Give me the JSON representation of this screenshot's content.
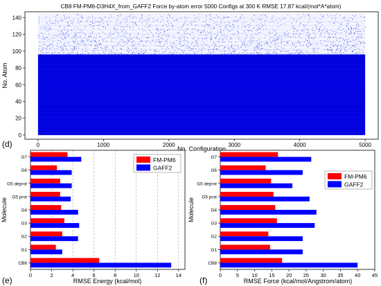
{
  "chart_data": [
    {
      "type": "scatter",
      "title": "CB8 FM-PM6-D3H4X_from_GAFF2 Force by-atom error 5000 Configs at 300 K RMSE 17.87 kcal/(mol*A*atom)",
      "xlabel": "No. Configuration",
      "ylabel": "No. Atom",
      "xlim": [
        -200,
        5200
      ],
      "ylim": [
        -5,
        147
      ],
      "xticks": [
        0,
        1000,
        2000,
        3000,
        4000,
        5000
      ],
      "yticks": [
        0,
        20,
        40,
        60,
        80,
        100,
        120,
        140
      ],
      "dense_region": {
        "x": [
          0,
          5000
        ],
        "y": [
          0,
          96
        ],
        "color": "#0000dd"
      },
      "sparse_region": {
        "x": [
          0,
          5000
        ],
        "y": [
          96,
          144
        ],
        "color": "#3344ee"
      },
      "grid": false
    },
    {
      "type": "bar",
      "orientation": "horizontal",
      "panel": "(e)",
      "categories": [
        "CB8",
        "G1",
        "G2",
        "G3",
        "G4",
        "G5 prot",
        "G5 deprot",
        "G6",
        "G7"
      ],
      "series": [
        {
          "name": "FM-PM6",
          "color": "#ff0000",
          "values": [
            6.5,
            2.4,
            3.0,
            3.2,
            2.9,
            2.8,
            2.8,
            2.5,
            3.5
          ]
        },
        {
          "name": "GAFF2",
          "color": "#0000ff",
          "values": [
            13.3,
            3.0,
            4.5,
            4.6,
            4.5,
            3.8,
            3.9,
            3.9,
            4.8
          ]
        }
      ],
      "xlabel": "RMSE Energy (kcal/mol)",
      "ylabel": "Molecule",
      "xlim": [
        0,
        14.6
      ],
      "xticks": [
        0,
        2,
        4,
        6,
        8,
        10,
        12,
        14
      ],
      "legend": "top-right",
      "grid": true
    },
    {
      "type": "bar",
      "orientation": "horizontal",
      "panel": "(f)",
      "categories": [
        "CB8",
        "G1",
        "G2",
        "G3",
        "G4",
        "G5 prot",
        "G5 deprot",
        "G6",
        "G7"
      ],
      "series": [
        {
          "name": "FM-PM6",
          "color": "#ff0000",
          "values": [
            18,
            14.5,
            14,
            16.5,
            16,
            15.5,
            14.8,
            13.2,
            16.8
          ]
        },
        {
          "name": "GAFF2",
          "color": "#0000ff",
          "values": [
            40,
            24,
            24,
            27.5,
            28,
            26,
            21,
            24,
            26.5
          ]
        }
      ],
      "xlabel": "RMSE Force (kcal/mol/Angstrom/atom)",
      "ylabel": "Molecule",
      "xlim": [
        0,
        45
      ],
      "xticks": [
        0,
        5,
        10,
        15,
        20,
        25,
        30,
        35,
        40,
        45
      ],
      "legend": "right",
      "grid": false
    }
  ],
  "panel_labels": {
    "d": "(d)",
    "e": "(e)",
    "f": "(f)"
  }
}
